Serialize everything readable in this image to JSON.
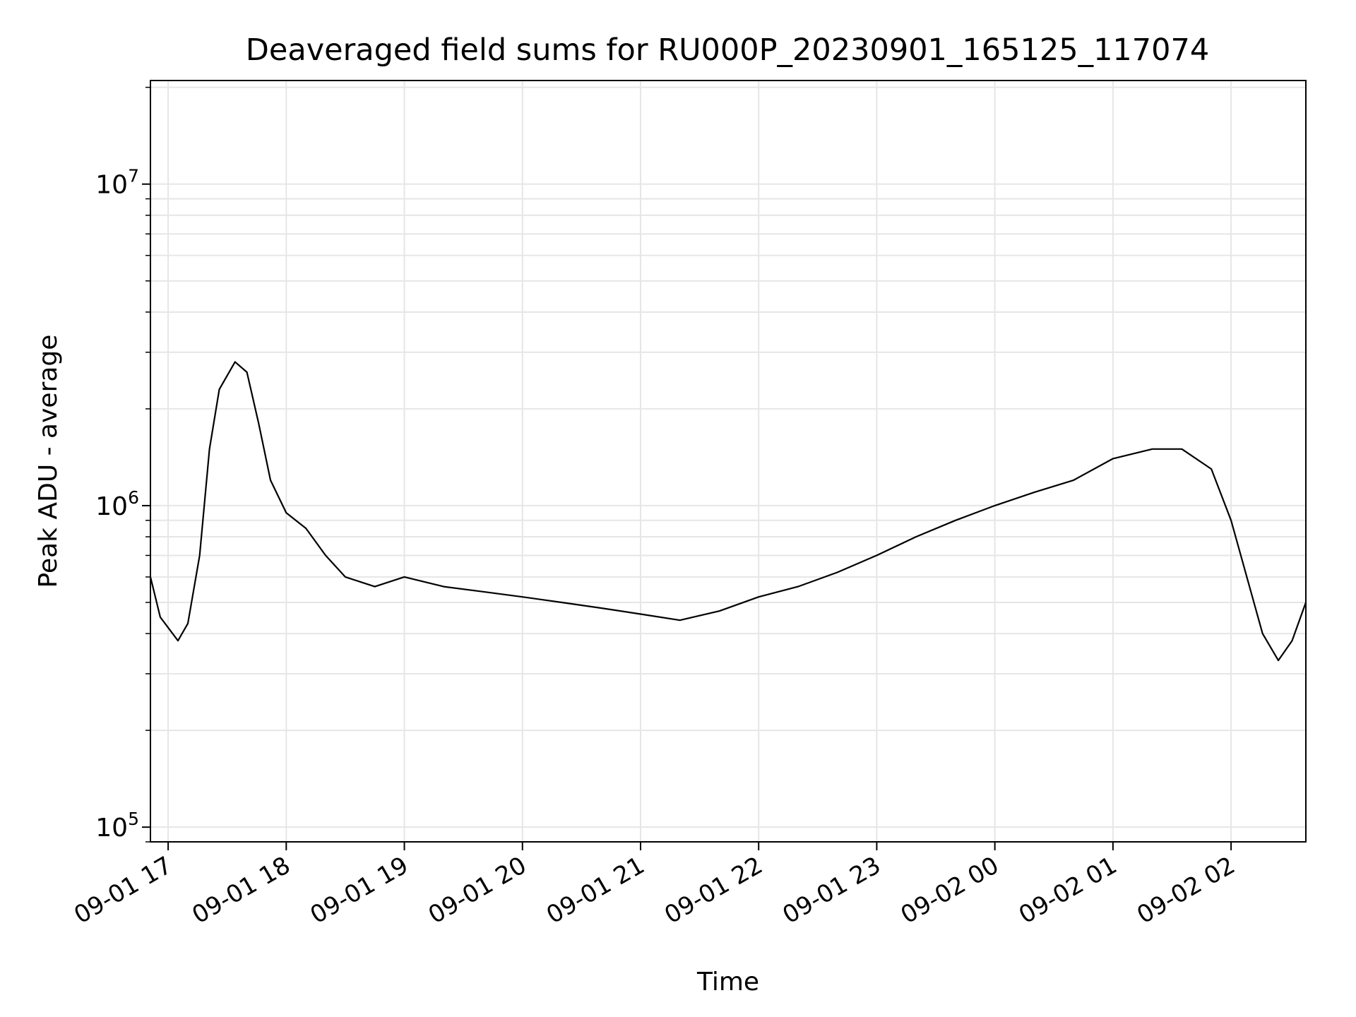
{
  "chart_data": {
    "type": "line",
    "title": "Deaveraged field sums for RU000P_20230901_165125_117074",
    "xlabel": "Time",
    "ylabel": "Peak ADU - average",
    "x_range": [
      "2023-09-01 16:51",
      "2023-09-02 02:38"
    ],
    "ylim": [
      90000,
      21000000
    ],
    "y_scale": "log",
    "grid": true,
    "line_color": "#000000",
    "grid_color": "#e6e6e6",
    "x_ticks": [
      {
        "t": "2023-09-01 17:00",
        "label": "09-01 17"
      },
      {
        "t": "2023-09-01 18:00",
        "label": "09-01 18"
      },
      {
        "t": "2023-09-01 19:00",
        "label": "09-01 19"
      },
      {
        "t": "2023-09-01 20:00",
        "label": "09-01 20"
      },
      {
        "t": "2023-09-01 21:00",
        "label": "09-01 21"
      },
      {
        "t": "2023-09-01 22:00",
        "label": "09-01 22"
      },
      {
        "t": "2023-09-01 23:00",
        "label": "09-01 23"
      },
      {
        "t": "2023-09-02 00:00",
        "label": "09-02 00"
      },
      {
        "t": "2023-09-02 01:00",
        "label": "09-02 01"
      },
      {
        "t": "2023-09-02 02:00",
        "label": "09-02 02"
      }
    ],
    "y_ticks": [
      {
        "value": 100000,
        "base": "10",
        "exp": "5"
      },
      {
        "value": 1000000,
        "base": "10",
        "exp": "6"
      },
      {
        "value": 10000000,
        "base": "10",
        "exp": "7"
      }
    ],
    "series": [
      {
        "x": [
          "2023-09-01 16:51",
          "2023-09-01 16:56",
          "2023-09-01 17:05",
          "2023-09-01 17:10",
          "2023-09-01 17:16",
          "2023-09-01 17:21",
          "2023-09-01 17:26",
          "2023-09-01 17:34",
          "2023-09-01 17:40",
          "2023-09-01 17:46",
          "2023-09-01 17:52",
          "2023-09-01 18:00",
          "2023-09-01 18:10",
          "2023-09-01 18:20",
          "2023-09-01 18:30",
          "2023-09-01 18:45",
          "2023-09-01 19:00",
          "2023-09-01 19:20",
          "2023-09-01 19:40",
          "2023-09-01 20:00",
          "2023-09-01 20:20",
          "2023-09-01 20:40",
          "2023-09-01 21:00",
          "2023-09-01 21:20",
          "2023-09-01 21:40",
          "2023-09-01 22:00",
          "2023-09-01 22:20",
          "2023-09-01 22:40",
          "2023-09-01 23:00",
          "2023-09-01 23:20",
          "2023-09-01 23:40",
          "2023-09-02 00:00",
          "2023-09-02 00:20",
          "2023-09-02 00:40",
          "2023-09-02 01:00",
          "2023-09-02 01:20",
          "2023-09-02 01:35",
          "2023-09-02 01:50",
          "2023-09-02 02:00",
          "2023-09-02 02:08",
          "2023-09-02 02:16",
          "2023-09-02 02:24",
          "2023-09-02 02:31",
          "2023-09-02 02:38"
        ],
        "y": [
          600000,
          450000,
          380000,
          430000,
          700000,
          1500000,
          2300000,
          2800000,
          2600000,
          1800000,
          1200000,
          950000,
          850000,
          700000,
          600000,
          560000,
          600000,
          560000,
          540000,
          520000,
          500000,
          480000,
          460000,
          440000,
          470000,
          520000,
          560000,
          620000,
          700000,
          800000,
          900000,
          1000000,
          1100000,
          1200000,
          1400000,
          1500000,
          1500000,
          1300000,
          900000,
          600000,
          400000,
          330000,
          380000,
          500000
        ]
      }
    ]
  }
}
